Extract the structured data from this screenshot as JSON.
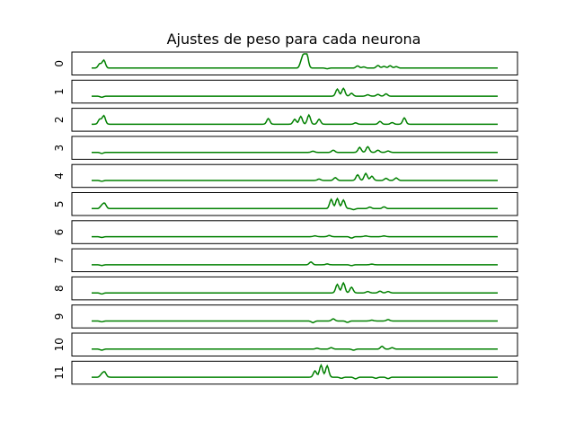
{
  "chart_data": {
    "type": "line",
    "title": "Ajustes de peso para cada neurona",
    "xlabel": "",
    "ylabel": "",
    "grid": false,
    "line_color": "#008000",
    "frame_color": "#000000",
    "x_range": [
      0,
      100
    ],
    "y_range": [
      -0.3,
      1.0
    ],
    "series": [
      {
        "name": "0",
        "spikes": [
          [
            2.0,
            0.3
          ],
          [
            3.0,
            0.55
          ],
          [
            51.7,
            0.5
          ],
          [
            52.4,
            0.9
          ],
          [
            53.0,
            0.85
          ],
          [
            58.0,
            -0.05
          ],
          [
            65.5,
            0.15
          ],
          [
            67.0,
            0.08
          ],
          [
            70.5,
            0.18
          ],
          [
            72.0,
            0.12
          ],
          [
            73.5,
            0.16
          ],
          [
            75.0,
            0.1
          ]
        ]
      },
      {
        "name": "1",
        "spikes": [
          [
            2.5,
            -0.08
          ],
          [
            60.5,
            0.5
          ],
          [
            62.0,
            0.55
          ],
          [
            64.0,
            0.2
          ],
          [
            68.0,
            0.1
          ],
          [
            70.5,
            0.12
          ],
          [
            72.5,
            0.16
          ]
        ]
      },
      {
        "name": "2",
        "spikes": [
          [
            2.0,
            0.35
          ],
          [
            3.0,
            0.6
          ],
          [
            43.5,
            0.4
          ],
          [
            50.0,
            0.35
          ],
          [
            51.5,
            0.55
          ],
          [
            53.5,
            0.65
          ],
          [
            56.0,
            0.35
          ],
          [
            65.0,
            0.1
          ],
          [
            71.0,
            0.2
          ],
          [
            74.0,
            0.12
          ],
          [
            77.0,
            0.45
          ]
        ]
      },
      {
        "name": "3",
        "spikes": [
          [
            2.5,
            -0.08
          ],
          [
            54.5,
            0.08
          ],
          [
            59.5,
            0.15
          ],
          [
            66.0,
            0.35
          ],
          [
            68.0,
            0.4
          ],
          [
            70.5,
            0.15
          ],
          [
            73.0,
            0.1
          ]
        ]
      },
      {
        "name": "4",
        "spikes": [
          [
            2.5,
            -0.06
          ],
          [
            56.0,
            0.1
          ],
          [
            60.0,
            0.2
          ],
          [
            65.5,
            0.4
          ],
          [
            67.5,
            0.5
          ],
          [
            69.0,
            0.3
          ],
          [
            72.5,
            0.15
          ],
          [
            75.0,
            0.18
          ]
        ]
      },
      {
        "name": "5",
        "spikes": [
          [
            2.5,
            0.2
          ],
          [
            3.2,
            0.35
          ],
          [
            59.0,
            0.65
          ],
          [
            60.5,
            0.7
          ],
          [
            62.0,
            0.6
          ],
          [
            64.5,
            -0.08
          ],
          [
            68.5,
            0.1
          ],
          [
            72.0,
            0.12
          ]
        ]
      },
      {
        "name": "6",
        "spikes": [
          [
            2.5,
            -0.06
          ],
          [
            55.0,
            0.06
          ],
          [
            58.5,
            0.08
          ],
          [
            64.0,
            -0.1
          ],
          [
            67.5,
            0.05
          ],
          [
            72.0,
            0.05
          ]
        ]
      },
      {
        "name": "7",
        "spikes": [
          [
            2.5,
            -0.05
          ],
          [
            54.0,
            0.2
          ],
          [
            58.0,
            0.06
          ],
          [
            64.0,
            -0.06
          ],
          [
            69.0,
            0.05
          ]
        ]
      },
      {
        "name": "8",
        "spikes": [
          [
            2.5,
            -0.08
          ],
          [
            60.5,
            0.6
          ],
          [
            62.0,
            0.7
          ],
          [
            64.0,
            0.4
          ],
          [
            68.0,
            0.1
          ],
          [
            71.0,
            0.12
          ],
          [
            73.0,
            0.1
          ]
        ]
      },
      {
        "name": "9",
        "spikes": [
          [
            2.5,
            -0.06
          ],
          [
            54.5,
            -0.12
          ],
          [
            59.5,
            0.15
          ],
          [
            63.0,
            -0.1
          ],
          [
            69.0,
            0.06
          ],
          [
            73.0,
            0.1
          ]
        ]
      },
      {
        "name": "10",
        "spikes": [
          [
            2.5,
            -0.08
          ],
          [
            55.5,
            0.06
          ],
          [
            59.0,
            0.1
          ],
          [
            64.5,
            -0.08
          ],
          [
            71.5,
            0.2
          ],
          [
            74.0,
            0.1
          ]
        ]
      },
      {
        "name": "11",
        "spikes": [
          [
            2.5,
            0.2
          ],
          [
            3.2,
            0.35
          ],
          [
            55.0,
            0.45
          ],
          [
            56.5,
            0.85
          ],
          [
            58.0,
            0.8
          ],
          [
            61.5,
            -0.08
          ],
          [
            65.0,
            -0.12
          ],
          [
            70.0,
            -0.08
          ],
          [
            73.0,
            -0.1
          ]
        ]
      }
    ]
  }
}
